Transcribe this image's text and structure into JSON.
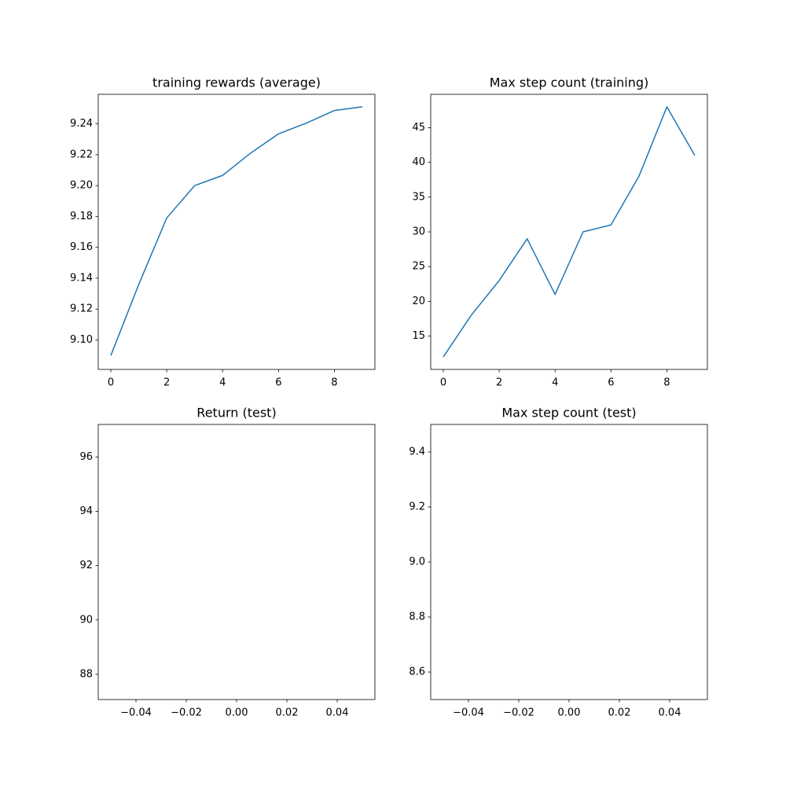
{
  "chart_data": [
    {
      "type": "line",
      "title": "training rewards (average)",
      "x": [
        0,
        1,
        2,
        3,
        4,
        5,
        6,
        7,
        8,
        9
      ],
      "series": [
        {
          "color": "#1f77b4",
          "values": [
            9.0899,
            9.136,
            9.179,
            9.2,
            9.2066,
            9.221,
            9.2335,
            9.2405,
            9.2486,
            9.251
          ]
        }
      ],
      "xlim": [
        -0.45,
        9.45
      ],
      "xticks": [
        0,
        2,
        4,
        6,
        8
      ],
      "ylim": [
        9.0809,
        9.2591
      ],
      "yticks": [
        {
          "value": 9.1,
          "label": "9.10"
        },
        9.12,
        9.14,
        9.16,
        9.18,
        {
          "value": 9.2,
          "label": "9.20"
        },
        9.22,
        9.24
      ]
    },
    {
      "type": "line",
      "title": "Max step count (training)",
      "x": [
        0,
        1,
        2,
        3,
        4,
        5,
        6,
        7,
        8,
        9
      ],
      "series": [
        {
          "color": "#1f77b4",
          "values": [
            12,
            18,
            23,
            29,
            21,
            30,
            31,
            38,
            48,
            41
          ]
        }
      ],
      "xlim": [
        -0.45,
        9.45
      ],
      "xticks": [
        0,
        2,
        4,
        6,
        8
      ],
      "ylim": [
        10.2,
        49.8
      ],
      "yticks": [
        15,
        20,
        25,
        30,
        35,
        40,
        45
      ]
    },
    {
      "type": "line",
      "title": "Return (test)",
      "xlim": [
        -0.055,
        0.055
      ],
      "xticks": [
        {
          "value": -0.04,
          "label": "−0.04"
        },
        {
          "value": -0.02,
          "label": "−0.02"
        },
        {
          "value": 0,
          "label": "0.00"
        },
        0.02,
        0.04
      ],
      "ylim": [
        87.07,
        97.2
      ],
      "yticks": [
        88,
        90,
        92,
        94,
        96
      ]
    },
    {
      "type": "line",
      "title": "Max step count (test)",
      "xlim": [
        -0.055,
        0.055
      ],
      "xticks": [
        {
          "value": -0.04,
          "label": "−0.04"
        },
        {
          "value": -0.02,
          "label": "−0.02"
        },
        {
          "value": 0,
          "label": "0.00"
        },
        0.02,
        0.04
      ],
      "ylim": [
        8.5,
        9.5
      ],
      "yticks": [
        8.6,
        8.8,
        {
          "value": 9,
          "label": "9.0"
        },
        9.2,
        9.4
      ]
    }
  ]
}
